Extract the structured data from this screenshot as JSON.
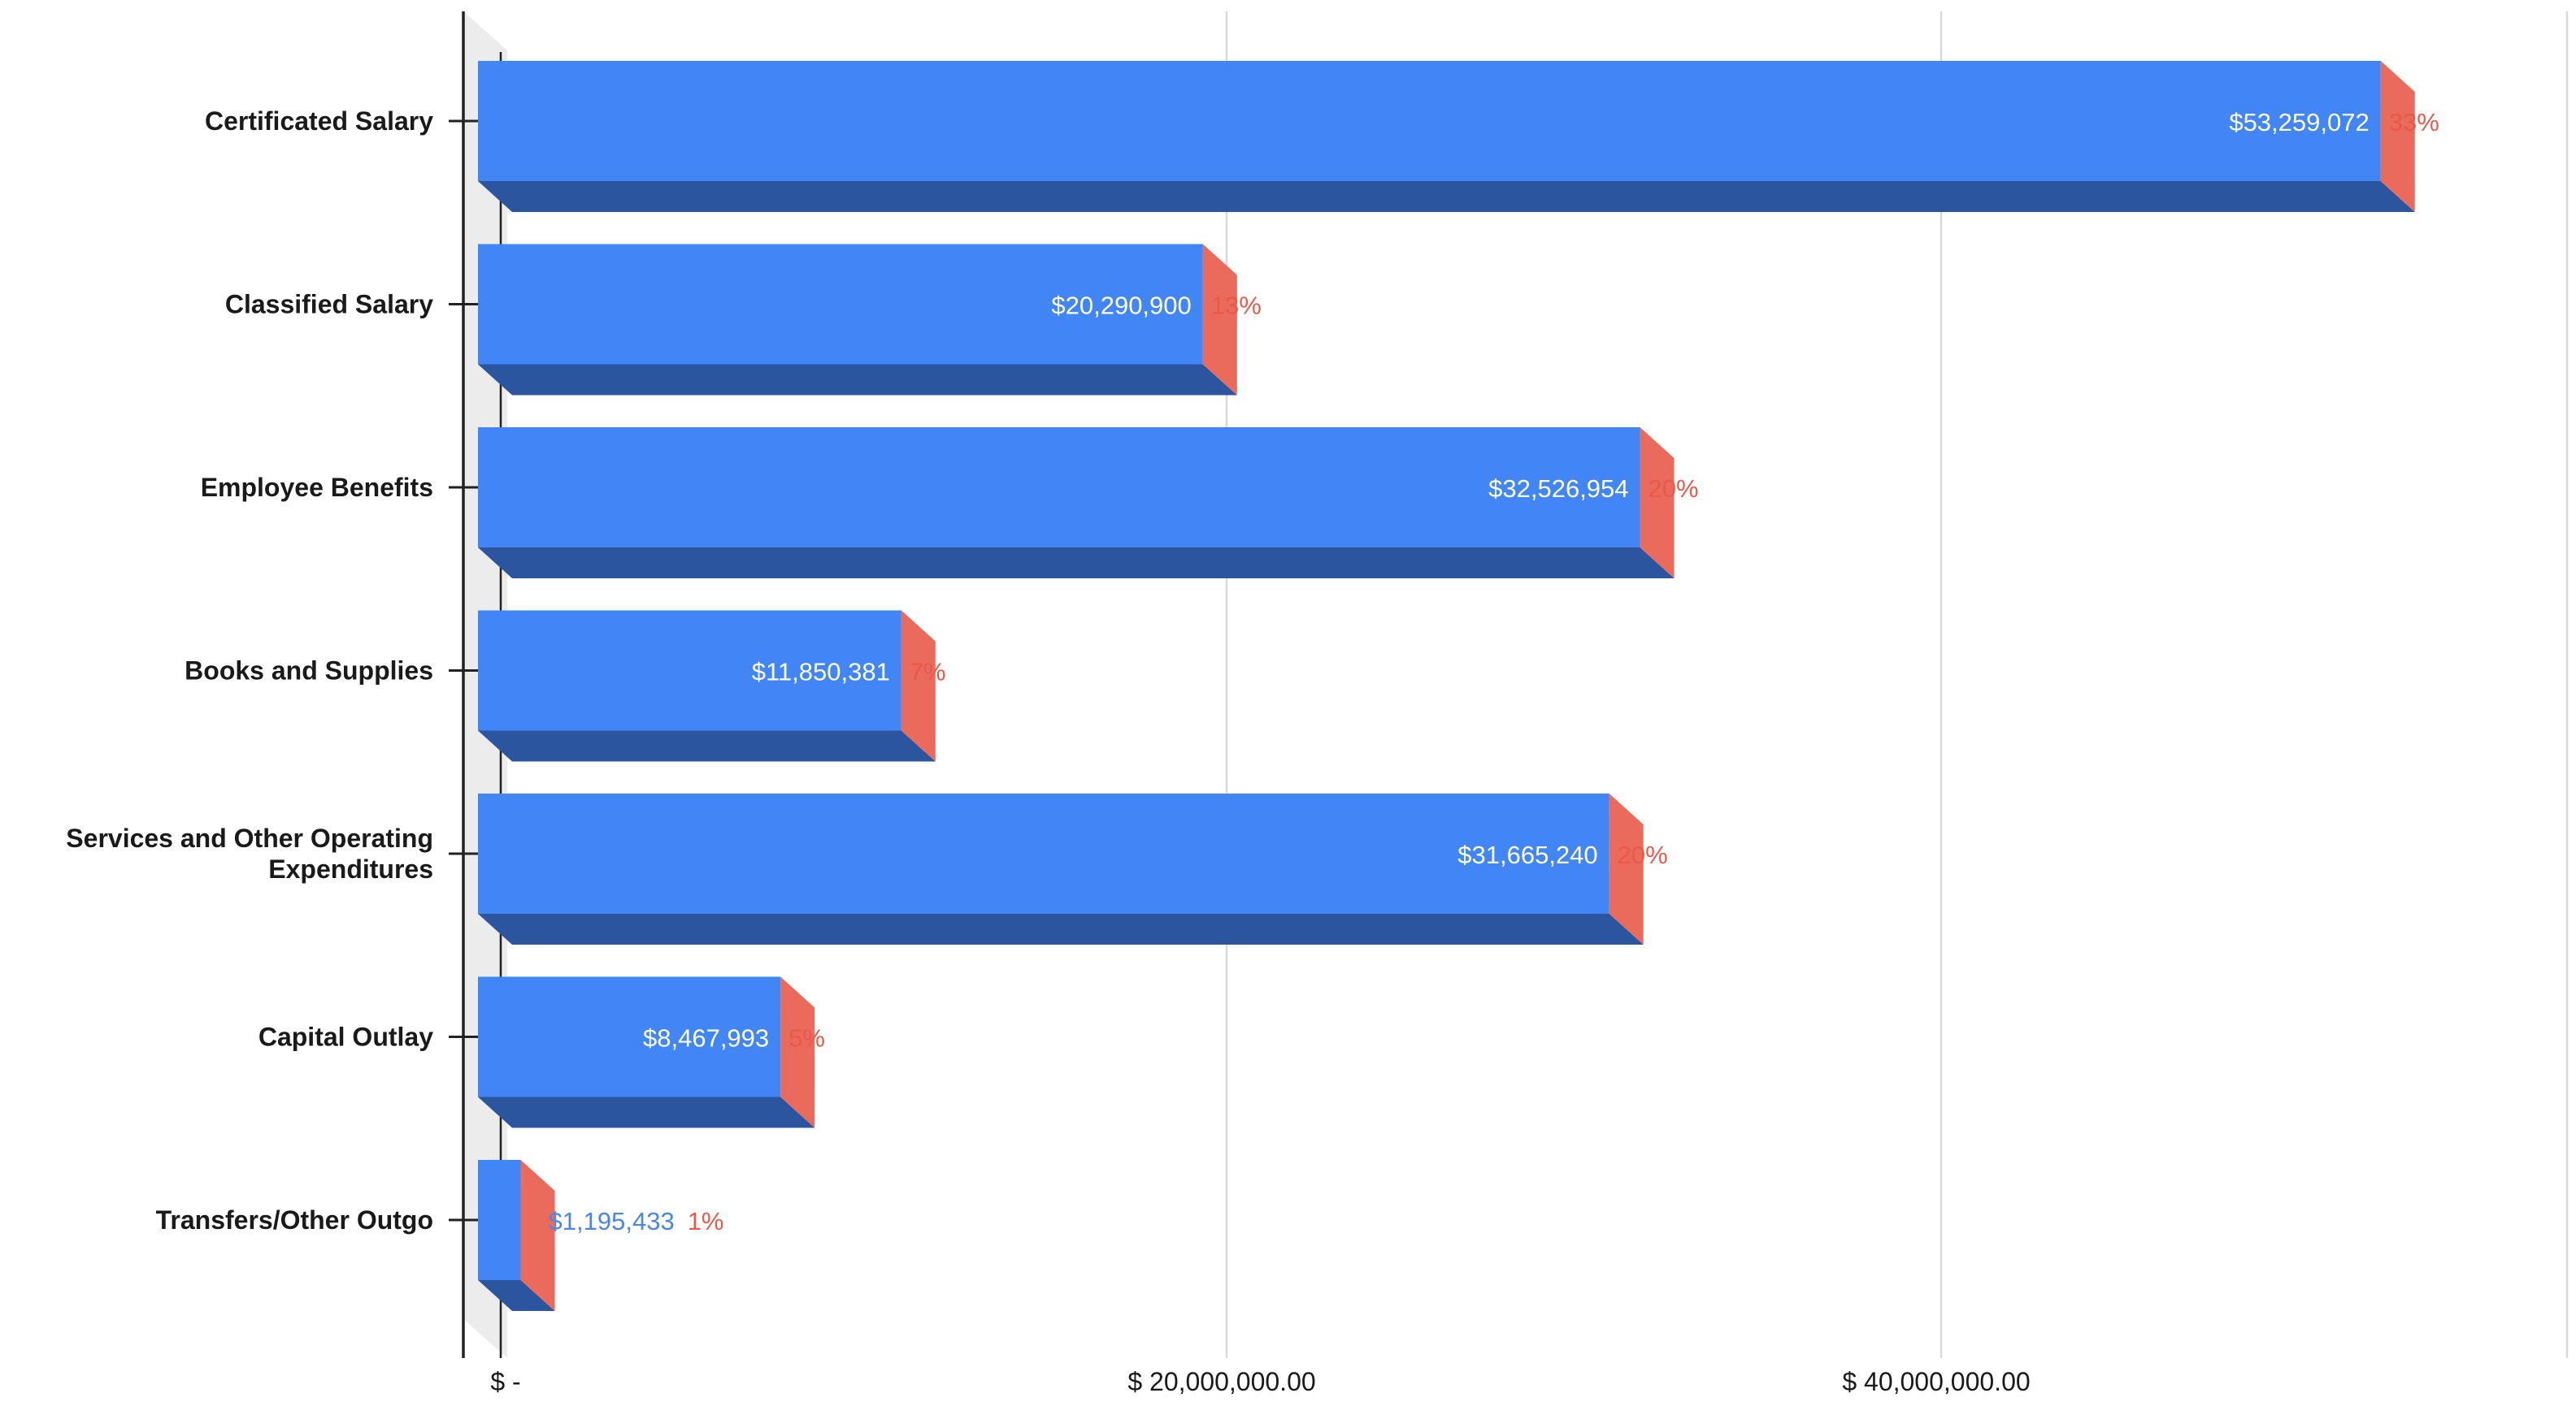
{
  "chart_data": {
    "type": "bar",
    "orientation": "horizontal",
    "style": "3d",
    "title": "",
    "xlabel": "",
    "ylabel": "",
    "categories": [
      [
        "Certificated Salary"
      ],
      [
        "Classified Salary"
      ],
      [
        "Employee Benefits"
      ],
      [
        "Books and Supplies"
      ],
      [
        "Services and Other Operating",
        "Expenditures"
      ],
      [
        "Capital Outlay"
      ],
      [
        "Transfers/Other Outgo"
      ]
    ],
    "values": [
      53259072,
      20290900,
      32526954,
      11850381,
      31665240,
      8467993,
      1195433
    ],
    "value_labels": [
      "$53,259,072",
      "$20,290,900",
      "$32,526,954",
      "$11,850,381",
      "$31,665,240",
      "$8,467,993",
      "$1,195,433"
    ],
    "percent_labels": [
      "33%",
      "13%",
      "20%",
      "7%",
      "20%",
      "5%",
      "1%"
    ],
    "xlim": [
      0,
      60000000
    ],
    "x_ticks": [
      0,
      20000000,
      40000000
    ],
    "x_tick_labels": [
      "$ -",
      "$ 20,000,000.00",
      "$ 40,000,000.00"
    ],
    "grid": true,
    "legend": "none",
    "colors": {
      "bar_front": "#4285f4",
      "bar_bottom": "#2c55a0",
      "bar_side": "#ea6b5c",
      "value_label_inside": "#ffffff",
      "value_label_outside": "#4a86e8",
      "percent_label": "#e8594a",
      "category_text": "#1a1a1a",
      "tick_text": "#1a1a1a",
      "grid": "#d9d9d9",
      "axis": "#222222",
      "wall": "#ececec"
    }
  }
}
